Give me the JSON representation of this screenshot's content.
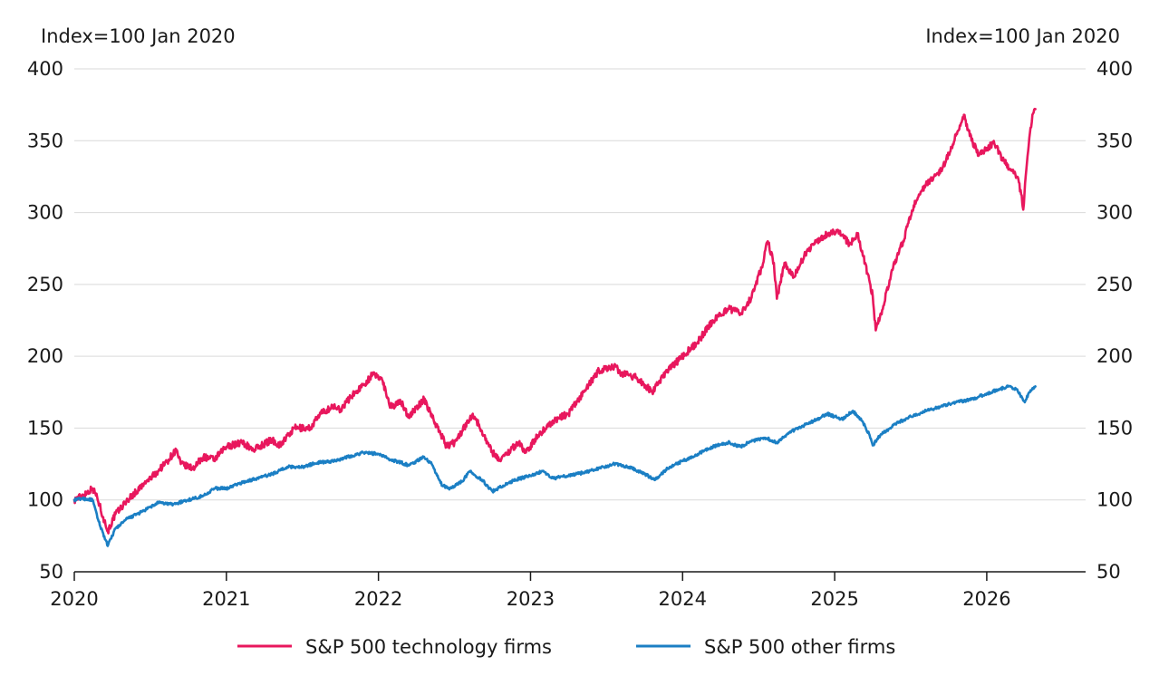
{
  "chart_data": {
    "type": "line",
    "left_axis_label": "Index=100 Jan 2020",
    "right_axis_label": "Index=100 Jan 2020",
    "y_ticks": [
      "50",
      "100",
      "150",
      "200",
      "250",
      "300",
      "350",
      "400"
    ],
    "ylim": [
      50,
      400
    ],
    "x_tick_labels": [
      "2020",
      "2021",
      "2022",
      "2023",
      "2024",
      "2025",
      "2026"
    ],
    "x_tick_values": [
      2020,
      2021,
      2022,
      2023,
      2024,
      2025,
      2026
    ],
    "xlim": [
      2020,
      2026.65
    ],
    "grid": true,
    "legend_position": "bottom",
    "series": [
      {
        "name": "S&P 500 technology firms",
        "color": "#e8175d",
        "points": [
          [
            2020.0,
            100
          ],
          [
            2020.05,
            103
          ],
          [
            2020.12,
            108
          ],
          [
            2020.15,
            102
          ],
          [
            2020.19,
            88
          ],
          [
            2020.22,
            78
          ],
          [
            2020.27,
            90
          ],
          [
            2020.35,
            100
          ],
          [
            2020.45,
            110
          ],
          [
            2020.55,
            120
          ],
          [
            2020.62,
            128
          ],
          [
            2020.67,
            135
          ],
          [
            2020.7,
            125
          ],
          [
            2020.78,
            122
          ],
          [
            2020.85,
            130
          ],
          [
            2020.92,
            128
          ],
          [
            2021.0,
            137
          ],
          [
            2021.1,
            140
          ],
          [
            2021.18,
            135
          ],
          [
            2021.3,
            142
          ],
          [
            2021.35,
            138
          ],
          [
            2021.45,
            150
          ],
          [
            2021.55,
            150
          ],
          [
            2021.62,
            160
          ],
          [
            2021.7,
            165
          ],
          [
            2021.75,
            163
          ],
          [
            2021.82,
            172
          ],
          [
            2021.9,
            180
          ],
          [
            2021.96,
            187
          ],
          [
            2022.02,
            185
          ],
          [
            2022.08,
            165
          ],
          [
            2022.15,
            168
          ],
          [
            2022.2,
            158
          ],
          [
            2022.3,
            170
          ],
          [
            2022.4,
            148
          ],
          [
            2022.45,
            137
          ],
          [
            2022.5,
            140
          ],
          [
            2022.55,
            148
          ],
          [
            2022.62,
            160
          ],
          [
            2022.68,
            148
          ],
          [
            2022.75,
            133
          ],
          [
            2022.8,
            128
          ],
          [
            2022.87,
            135
          ],
          [
            2022.92,
            140
          ],
          [
            2022.97,
            133
          ],
          [
            2023.05,
            145
          ],
          [
            2023.15,
            155
          ],
          [
            2023.25,
            160
          ],
          [
            2023.35,
            175
          ],
          [
            2023.45,
            190
          ],
          [
            2023.55,
            193
          ],
          [
            2023.6,
            188
          ],
          [
            2023.7,
            185
          ],
          [
            2023.8,
            175
          ],
          [
            2023.9,
            190
          ],
          [
            2024.0,
            200
          ],
          [
            2024.1,
            210
          ],
          [
            2024.2,
            225
          ],
          [
            2024.3,
            233
          ],
          [
            2024.38,
            230
          ],
          [
            2024.45,
            240
          ],
          [
            2024.52,
            262
          ],
          [
            2024.56,
            280
          ],
          [
            2024.6,
            265
          ],
          [
            2024.62,
            240
          ],
          [
            2024.67,
            265
          ],
          [
            2024.73,
            255
          ],
          [
            2024.8,
            270
          ],
          [
            2024.88,
            280
          ],
          [
            2024.95,
            285
          ],
          [
            2025.02,
            288
          ],
          [
            2025.1,
            278
          ],
          [
            2025.15,
            285
          ],
          [
            2025.2,
            265
          ],
          [
            2025.25,
            242
          ],
          [
            2025.27,
            218
          ],
          [
            2025.32,
            235
          ],
          [
            2025.38,
            260
          ],
          [
            2025.45,
            280
          ],
          [
            2025.52,
            305
          ],
          [
            2025.6,
            320
          ],
          [
            2025.7,
            330
          ],
          [
            2025.75,
            340
          ],
          [
            2025.8,
            355
          ],
          [
            2025.85,
            368
          ],
          [
            2025.9,
            350
          ],
          [
            2025.95,
            340
          ],
          [
            2026.0,
            345
          ],
          [
            2026.05,
            348
          ],
          [
            2026.1,
            338
          ],
          [
            2026.15,
            330
          ],
          [
            2026.2,
            325
          ],
          [
            2026.23,
            312
          ],
          [
            2026.24,
            302
          ],
          [
            2026.26,
            330
          ],
          [
            2026.28,
            352
          ],
          [
            2026.3,
            368
          ],
          [
            2026.32,
            372
          ]
        ]
      },
      {
        "name": "S&P 500 other firms",
        "color": "#1b7fc4",
        "points": [
          [
            2020.0,
            100
          ],
          [
            2020.05,
            101
          ],
          [
            2020.12,
            100
          ],
          [
            2020.16,
            85
          ],
          [
            2020.22,
            68
          ],
          [
            2020.27,
            80
          ],
          [
            2020.35,
            87
          ],
          [
            2020.45,
            92
          ],
          [
            2020.55,
            98
          ],
          [
            2020.65,
            97
          ],
          [
            2020.75,
            100
          ],
          [
            2020.85,
            103
          ],
          [
            2020.92,
            108
          ],
          [
            2021.0,
            108
          ],
          [
            2021.1,
            112
          ],
          [
            2021.2,
            115
          ],
          [
            2021.3,
            118
          ],
          [
            2021.4,
            123
          ],
          [
            2021.5,
            123
          ],
          [
            2021.6,
            126
          ],
          [
            2021.7,
            127
          ],
          [
            2021.8,
            130
          ],
          [
            2021.9,
            133
          ],
          [
            2022.0,
            132
          ],
          [
            2022.08,
            128
          ],
          [
            2022.15,
            126
          ],
          [
            2022.2,
            124
          ],
          [
            2022.3,
            130
          ],
          [
            2022.35,
            125
          ],
          [
            2022.42,
            110
          ],
          [
            2022.47,
            108
          ],
          [
            2022.55,
            113
          ],
          [
            2022.6,
            120
          ],
          [
            2022.68,
            114
          ],
          [
            2022.75,
            106
          ],
          [
            2022.82,
            110
          ],
          [
            2022.9,
            114
          ],
          [
            2023.0,
            117
          ],
          [
            2023.08,
            120
          ],
          [
            2023.15,
            115
          ],
          [
            2023.25,
            117
          ],
          [
            2023.35,
            119
          ],
          [
            2023.45,
            122
          ],
          [
            2023.55,
            125
          ],
          [
            2023.65,
            123
          ],
          [
            2023.75,
            118
          ],
          [
            2023.82,
            114
          ],
          [
            2023.9,
            122
          ],
          [
            2024.0,
            127
          ],
          [
            2024.1,
            132
          ],
          [
            2024.2,
            137
          ],
          [
            2024.3,
            140
          ],
          [
            2024.38,
            137
          ],
          [
            2024.45,
            141
          ],
          [
            2024.55,
            143
          ],
          [
            2024.62,
            140
          ],
          [
            2024.7,
            147
          ],
          [
            2024.8,
            152
          ],
          [
            2024.9,
            157
          ],
          [
            2024.95,
            160
          ],
          [
            2025.05,
            156
          ],
          [
            2025.12,
            162
          ],
          [
            2025.18,
            155
          ],
          [
            2025.23,
            145
          ],
          [
            2025.25,
            138
          ],
          [
            2025.3,
            145
          ],
          [
            2025.4,
            153
          ],
          [
            2025.5,
            158
          ],
          [
            2025.6,
            162
          ],
          [
            2025.7,
            165
          ],
          [
            2025.8,
            168
          ],
          [
            2025.9,
            170
          ],
          [
            2026.0,
            174
          ],
          [
            2026.08,
            177
          ],
          [
            2026.15,
            179
          ],
          [
            2026.2,
            177
          ],
          [
            2026.22,
            173
          ],
          [
            2026.25,
            168
          ],
          [
            2026.28,
            175
          ],
          [
            2026.32,
            179
          ]
        ]
      }
    ]
  }
}
